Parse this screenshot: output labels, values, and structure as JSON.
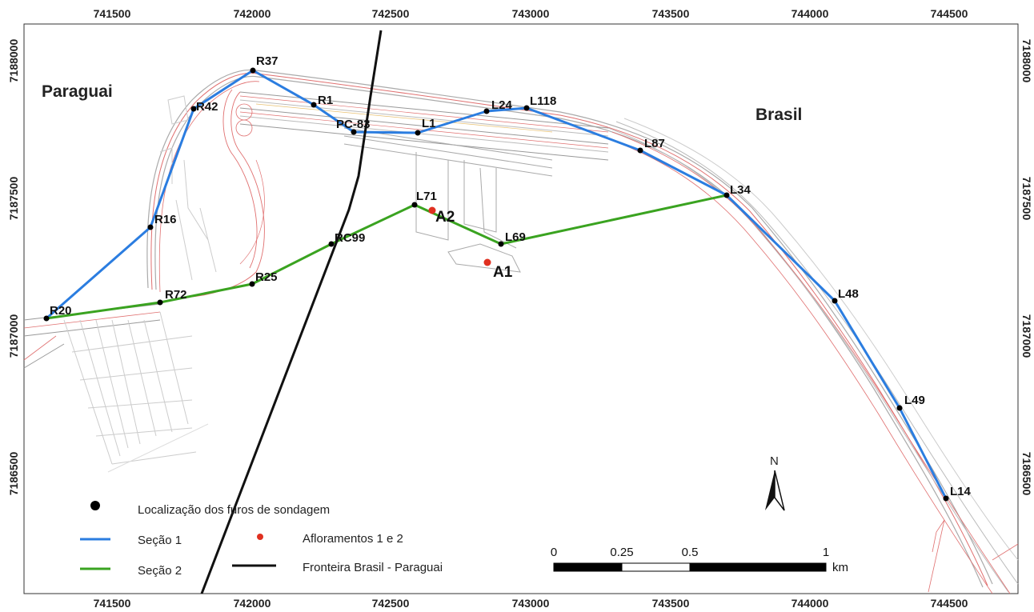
{
  "map": {
    "x_ticks": [
      "741500",
      "742000",
      "742500",
      "743000",
      "743500",
      "744000",
      "744500"
    ],
    "y_ticks": [
      "7188000",
      "7187500",
      "7187000",
      "7186500"
    ],
    "countries": [
      "Paraguai",
      "Brasil"
    ],
    "points": [
      "R37",
      "R42",
      "R1",
      "PC-83",
      "L1",
      "L24",
      "L118",
      "L87",
      "L34",
      "R16",
      "L71",
      "A2",
      "RC99",
      "L69",
      "A1",
      "R25",
      "R72",
      "R20",
      "L48",
      "L49",
      "L14"
    ],
    "north_label": "N",
    "legend": {
      "boreholes": "Localização dos furos de sondagem",
      "section1": "Seção 1",
      "section2": "Seção 2",
      "outcrops": "Afloramentos 1 e 2",
      "border": "Fronteira Brasil - Paraguai"
    },
    "scale": {
      "labels": [
        "0",
        "0.25",
        "0.5",
        "1"
      ],
      "unit": "km"
    },
    "colors": {
      "section1": "#2b7de0",
      "section2": "#3aa320",
      "outcrop": "#e03020",
      "border": "#111111"
    }
  }
}
